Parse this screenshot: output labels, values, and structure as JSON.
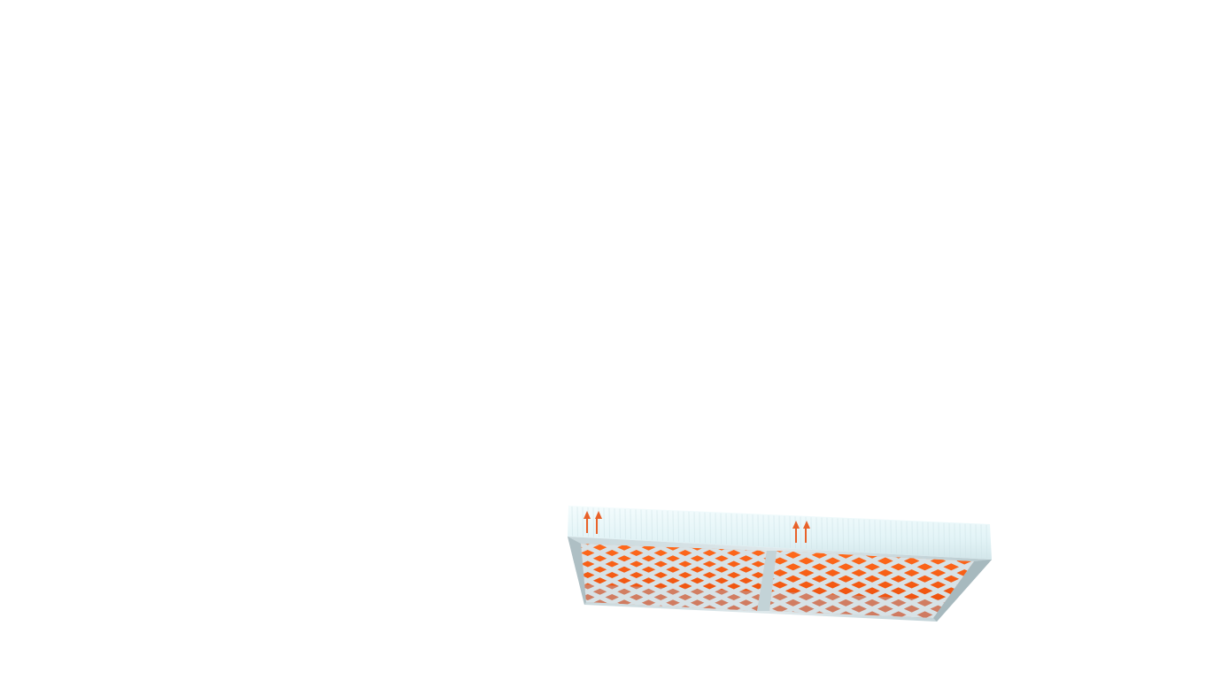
{
  "scene": {
    "subject": "air-filter-panel",
    "colors": {
      "background": "#ffffff",
      "frame_light": "#e6f6f8",
      "frame_mid": "#c9dde2",
      "frame_shadow": "#9fb3ba",
      "mesh_orange": "#ff5a10",
      "mesh_orange_dark": "#d84a0c",
      "lattice": "#d7e2e6",
      "arrow": "#e8622a"
    },
    "panels": [
      {
        "name": "left-panel",
        "lattice_columns": 8,
        "lattice_rows": 5
      },
      {
        "name": "right-panel",
        "lattice_columns": 8,
        "lattice_rows": 5
      }
    ],
    "airflow_arrow_groups": [
      {
        "name": "airflow-arrows-left",
        "count": 2
      },
      {
        "name": "airflow-arrows-right",
        "count": 2
      }
    ]
  }
}
